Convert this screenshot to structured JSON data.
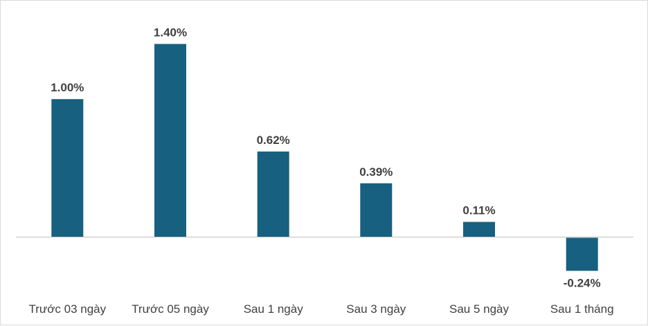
{
  "chart_data": {
    "type": "bar",
    "title": "",
    "xlabel": "",
    "ylabel": "",
    "categories": [
      "Trước 03 ngày",
      "Trước 05 ngày",
      "Sau 1 ngày",
      "Sau 3 ngày",
      "Sau 5 ngày",
      "Sau 1 tháng"
    ],
    "values": [
      1.0,
      1.4,
      0.62,
      0.39,
      0.11,
      -0.24
    ],
    "data_labels": [
      "1.00%",
      "1.40%",
      "0.62%",
      "0.39%",
      "0.11%",
      "-0.24%"
    ],
    "value_unit": "%",
    "ylim": [
      -0.24,
      1.4
    ],
    "grid": false,
    "legend": "none",
    "bar_color": "#17607f",
    "axis_color": "#bfbfbf",
    "text_color": "#404040"
  }
}
